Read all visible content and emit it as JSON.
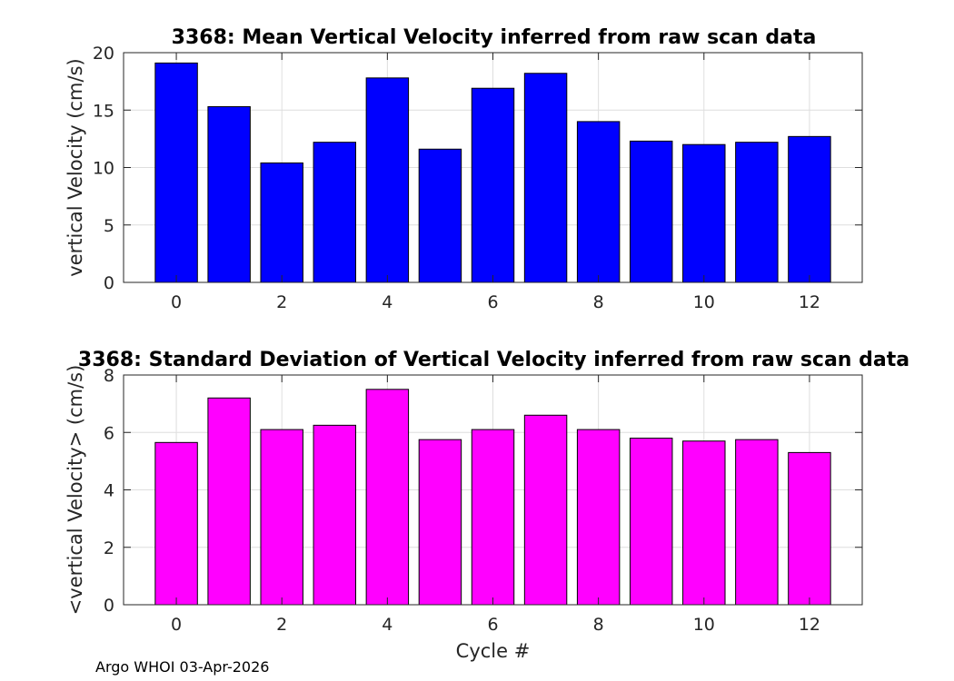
{
  "chart_data": [
    {
      "type": "bar",
      "title": "3368: Mean Vertical Velocity inferred from raw scan data",
      "xlabel": "",
      "ylabel": "vertical Velocity (cm/s)",
      "x": [
        0,
        1,
        2,
        3,
        4,
        5,
        6,
        7,
        8,
        9,
        10,
        11,
        12
      ],
      "values": [
        19.1,
        15.3,
        10.4,
        12.2,
        17.8,
        11.6,
        16.9,
        18.2,
        14.0,
        12.3,
        12.0,
        12.2,
        12.7
      ],
      "xlim": [
        -1,
        13
      ],
      "ylim": [
        0,
        20
      ],
      "xticks": [
        0,
        2,
        4,
        6,
        8,
        10,
        12
      ],
      "yticks": [
        0,
        5,
        10,
        15,
        20
      ],
      "color": "#0000ff",
      "grid": true
    },
    {
      "type": "bar",
      "title": "3368: Standard Deviation of Vertical Velocity inferred from raw scan data",
      "xlabel": "Cycle #",
      "ylabel": "<vertical Velocity> (cm/s)",
      "x": [
        0,
        1,
        2,
        3,
        4,
        5,
        6,
        7,
        8,
        9,
        10,
        11,
        12
      ],
      "values": [
        5.65,
        7.2,
        6.1,
        6.25,
        7.5,
        5.75,
        6.1,
        6.6,
        6.1,
        5.8,
        5.7,
        5.75,
        5.3
      ],
      "xlim": [
        -1,
        13
      ],
      "ylim": [
        0,
        8
      ],
      "xticks": [
        0,
        2,
        4,
        6,
        8,
        10,
        12
      ],
      "yticks": [
        0,
        2,
        4,
        6,
        8
      ],
      "color": "#ff00ff",
      "grid": true
    }
  ],
  "footer": "Argo WHOI 03-Apr-2026"
}
